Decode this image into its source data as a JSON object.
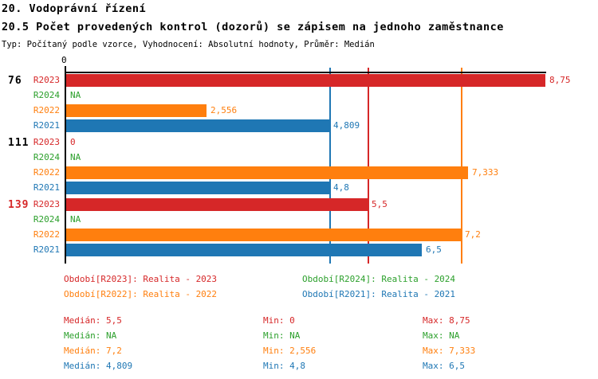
{
  "header": {
    "title": "20. Vodoprávní řízení",
    "subtitle": "20.5 Počet provedených kontrol (dozorů) se zápisem na jednoho zaměstnance",
    "meta": "Typ: Počítaný podle vzorce, Vyhodnocení: Absolutní hodnoty, Průměr: Medián"
  },
  "colors": {
    "r2023": "#d62728",
    "r2024": "#2ca02c",
    "r2022": "#ff7f0e",
    "r2021": "#1f77b4",
    "axis": "#000000",
    "group_label_highlight": "#d62728"
  },
  "chart_data": {
    "type": "bar",
    "orientation": "horizontal",
    "title": "20.5 Počet provedených kontrol (dozorů) se zápisem na jednoho zaměstnance",
    "average_mode": "Medián",
    "value_axis": {
      "zero_label": "0",
      "min": 0,
      "max": 8.79,
      "grid": false
    },
    "groups": [
      {
        "label": "76",
        "label_color": "#000000",
        "rows": [
          {
            "series": "R2023",
            "color_key": "r2023",
            "value": 8.75,
            "display": "8,75"
          },
          {
            "series": "R2024",
            "color_key": "r2024",
            "value": null,
            "display": "NA"
          },
          {
            "series": "R2022",
            "color_key": "r2022",
            "value": 2.556,
            "display": "2,556"
          },
          {
            "series": "R2021",
            "color_key": "r2021",
            "value": 4.809,
            "display": "4,809"
          }
        ]
      },
      {
        "label": "111",
        "label_color": "#000000",
        "rows": [
          {
            "series": "R2023",
            "color_key": "r2023",
            "value": 0,
            "display": "0"
          },
          {
            "series": "R2024",
            "color_key": "r2024",
            "value": null,
            "display": "NA"
          },
          {
            "series": "R2022",
            "color_key": "r2022",
            "value": 7.333,
            "display": "7,333"
          },
          {
            "series": "R2021",
            "color_key": "r2021",
            "value": 4.8,
            "display": "4,8"
          }
        ]
      },
      {
        "label": "139",
        "label_color": "#d62728",
        "rows": [
          {
            "series": "R2023",
            "color_key": "r2023",
            "value": 5.5,
            "display": "5,5"
          },
          {
            "series": "R2024",
            "color_key": "r2024",
            "value": null,
            "display": "NA"
          },
          {
            "series": "R2022",
            "color_key": "r2022",
            "value": 7.2,
            "display": "7,2"
          },
          {
            "series": "R2021",
            "color_key": "r2021",
            "value": 6.5,
            "display": "6,5"
          }
        ]
      }
    ],
    "median_lines": [
      {
        "color_key": "r2021",
        "value": 4.809
      },
      {
        "color_key": "r2023",
        "value": 5.5
      },
      {
        "color_key": "r2022",
        "value": 7.2
      }
    ]
  },
  "legend": {
    "items": [
      {
        "color_key": "r2023",
        "label": "Období[R2023]: Realita - 2023"
      },
      {
        "color_key": "r2024",
        "label": "Období[R2024]: Realita - 2024"
      },
      {
        "color_key": "r2022",
        "label": "Období[R2022]: Realita - 2022"
      },
      {
        "color_key": "r2021",
        "label": "Období[R2021]: Realita - 2021"
      }
    ]
  },
  "stats": {
    "rows": [
      {
        "color_key": "r2023",
        "median": "Medián: 5,5",
        "min": "Min: 0",
        "max": "Max: 8,75"
      },
      {
        "color_key": "r2024",
        "median": "Medián: NA",
        "min": "Min: NA",
        "max": "Max: NA"
      },
      {
        "color_key": "r2022",
        "median": "Medián: 7,2",
        "min": "Min: 2,556",
        "max": "Max: 7,333"
      },
      {
        "color_key": "r2021",
        "median": "Medián: 4,809",
        "min": "Min: 4,8",
        "max": "Max: 6,5"
      }
    ]
  }
}
